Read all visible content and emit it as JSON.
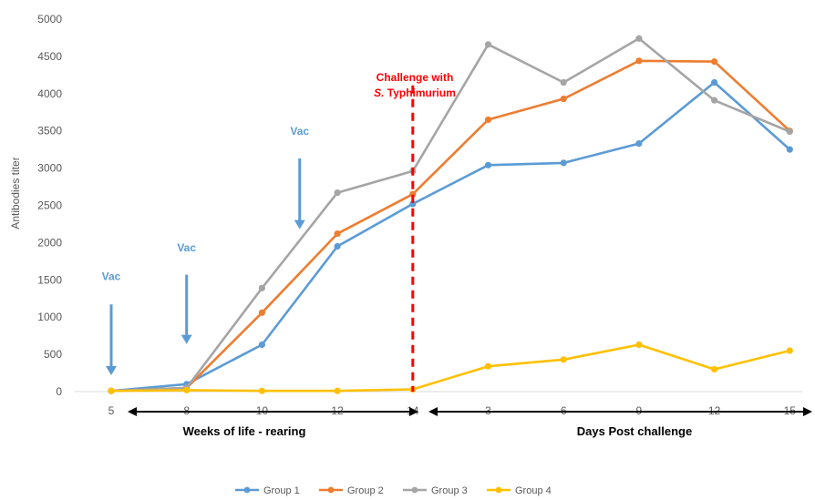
{
  "chart_data": {
    "type": "line",
    "title": "",
    "ylabel": "Antibodies titer",
    "xlabel": "",
    "ylim": [
      0,
      5000
    ],
    "y_ticks": [
      0,
      500,
      1000,
      1500,
      2000,
      2500,
      3000,
      3500,
      4000,
      4500,
      5000
    ],
    "categories": [
      "5",
      "8",
      "10",
      "12",
      "14",
      "3",
      "6",
      "9",
      "12",
      "15"
    ],
    "grid": false,
    "legend_position": "bottom",
    "series": [
      {
        "name": "Group 1",
        "color": "#5b9bd5",
        "values": [
          10,
          100,
          630,
          1950,
          2520,
          3040,
          3070,
          3330,
          4150,
          3250
        ]
      },
      {
        "name": "Group 2",
        "color": "#ed7d31",
        "values": [
          10,
          50,
          1060,
          2120,
          2650,
          3650,
          3930,
          4440,
          4430,
          3500
        ]
      },
      {
        "name": "Group 3",
        "color": "#a5a5a5",
        "values": [
          10,
          50,
          1390,
          2670,
          2960,
          4660,
          4150,
          4740,
          3910,
          3490
        ]
      },
      {
        "name": "Group 4",
        "color": "#ffc000",
        "values": [
          10,
          20,
          10,
          10,
          30,
          340,
          430,
          630,
          300,
          550
        ]
      }
    ],
    "annotations": {
      "vac_label": "Vac",
      "vac_color": "#5b9bd5",
      "vac_arrows": [
        {
          "category_index": 0,
          "from_value": 1170,
          "to_value": 220,
          "label_value": 1500
        },
        {
          "category_index": 1,
          "from_value": 1570,
          "to_value": 640,
          "label_value": 1880
        },
        {
          "category_index": 2.5,
          "from_value": 3130,
          "to_value": 2180,
          "label_value": 3450
        }
      ],
      "challenge_color": "#ff0000",
      "challenge_line_category_index": 4,
      "challenge_line_top_value": 4110,
      "challenge_line1": "Challenge with",
      "challenge_line2_italic": "S.",
      "challenge_line2_rest": "Typhimurium",
      "phase_left": "Weeks of life - rearing",
      "phase_right": "Days Post challenge"
    }
  }
}
